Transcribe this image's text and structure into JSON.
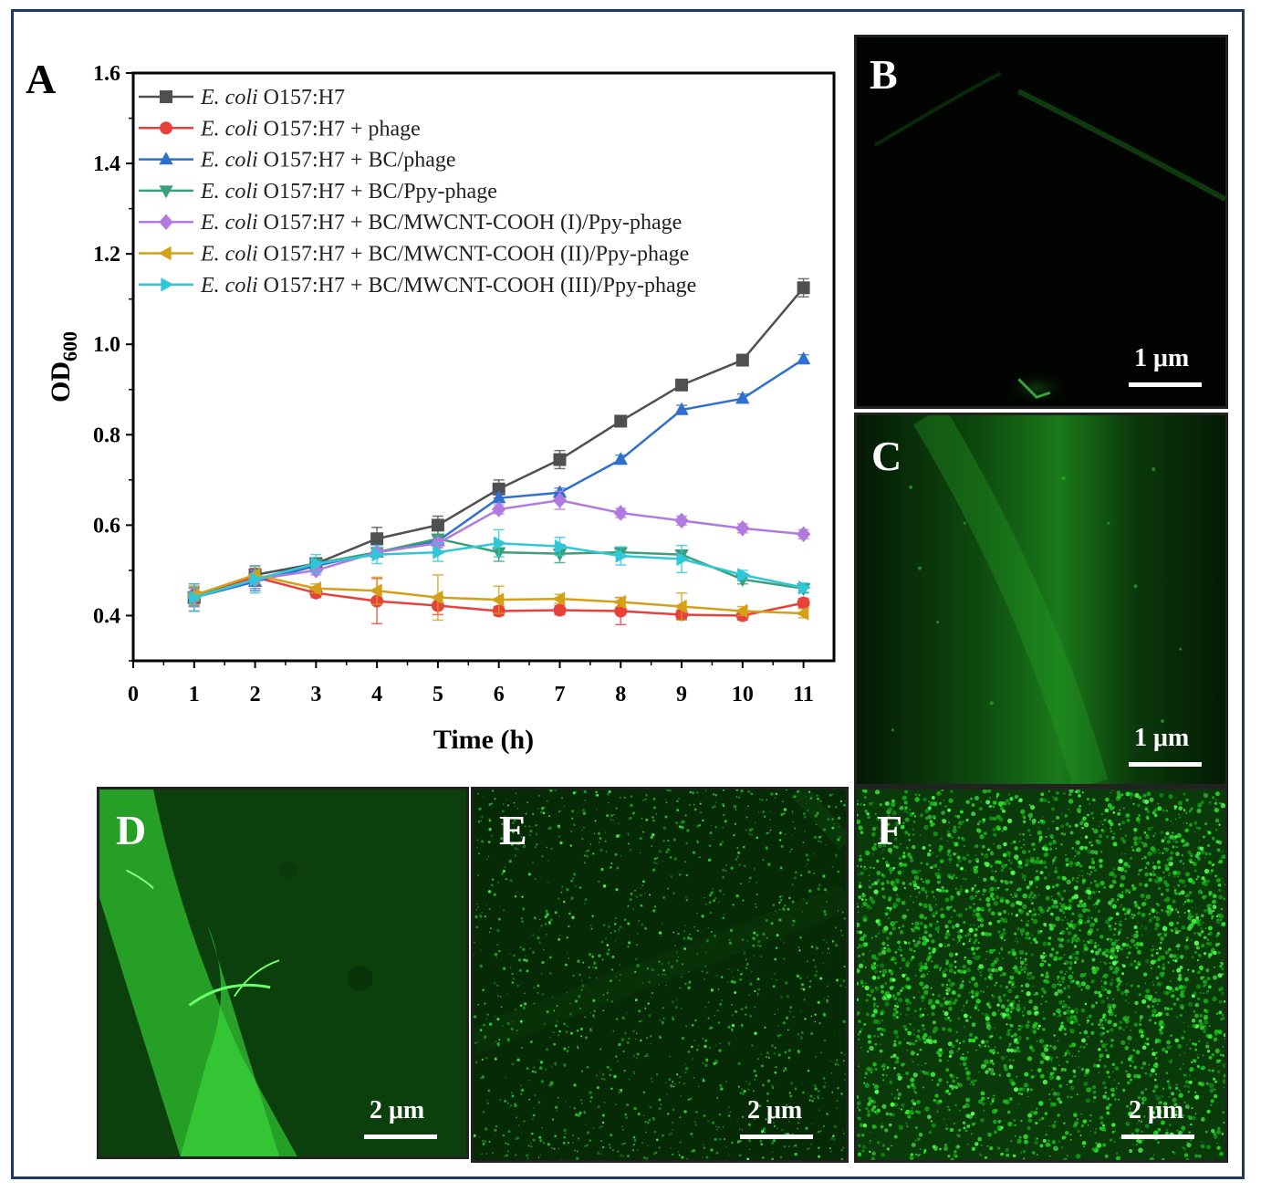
{
  "chart_data": {
    "type": "line",
    "panel_label": "A",
    "xlabel": "Time (h)",
    "ylabel_main": "OD",
    "ylabel_sub": "600",
    "xlim": [
      0,
      11.5
    ],
    "ylim": [
      0.3,
      1.6
    ],
    "xticks": [
      "0",
      "1",
      "2",
      "3",
      "4",
      "5",
      "6",
      "7",
      "8",
      "9",
      "10",
      "11"
    ],
    "yticks": [
      "0.4",
      "0.6",
      "0.8",
      "1.0",
      "1.2",
      "1.4",
      "1.6"
    ],
    "legend_position": "top-left",
    "x": [
      1,
      2,
      3,
      4,
      5,
      6,
      7,
      8,
      9,
      10,
      11
    ],
    "series": [
      {
        "name_italic": "E. coli",
        "name_rest": " O157:H7",
        "color": "#505050",
        "marker": "square",
        "values": [
          0.44,
          0.49,
          0.515,
          0.57,
          0.6,
          0.68,
          0.745,
          0.83,
          0.91,
          0.965,
          1.125
        ],
        "errors": [
          0.03,
          0.02,
          0.01,
          0.025,
          0.02,
          0.02,
          0.02,
          0.01,
          0.01,
          0.01,
          0.02
        ]
      },
      {
        "name_italic": "E. coli",
        "name_rest": " O157:H7 + phage",
        "color": "#e8403a",
        "marker": "circle",
        "values": [
          0.445,
          0.485,
          0.45,
          0.432,
          0.422,
          0.41,
          0.412,
          0.41,
          0.402,
          0.4,
          0.428
        ],
        "errors": [
          0.02,
          0.02,
          0.01,
          0.05,
          0.02,
          0.01,
          0.01,
          0.03,
          0.01,
          0.01,
          0.01
        ]
      },
      {
        "name_italic": "E. coli",
        "name_rest": " O157:H7 + BC/phage",
        "color": "#2f6fd0",
        "marker": "triangle-up",
        "values": [
          0.44,
          0.475,
          0.51,
          0.54,
          0.565,
          0.66,
          0.672,
          0.745,
          0.855,
          0.88,
          0.967
        ],
        "errors": [
          0.02,
          0.02,
          0.01,
          0.01,
          0.01,
          0.01,
          0.01,
          0.01,
          0.01,
          0.01,
          0.01
        ]
      },
      {
        "name_italic": "E. coli",
        "name_rest": " O157:H7 + BC/Ppy-phage",
        "color": "#3aa07a",
        "marker": "triangle-down",
        "values": [
          0.442,
          0.48,
          0.515,
          0.54,
          0.57,
          0.54,
          0.537,
          0.54,
          0.535,
          0.48,
          0.46
        ],
        "errors": [
          0.02,
          0.02,
          0.01,
          0.01,
          0.01,
          0.02,
          0.02,
          0.01,
          0.01,
          0.01,
          0.01
        ]
      },
      {
        "name_italic": "E. coli",
        "name_rest": " O157:H7 + BC/MWCNT-COOH (I)/Ppy-phage",
        "color": "#b07ae0",
        "marker": "diamond",
        "values": [
          0.44,
          0.48,
          0.5,
          0.54,
          0.56,
          0.635,
          0.655,
          0.627,
          0.61,
          0.593,
          0.58
        ],
        "errors": [
          0.02,
          0.02,
          0.01,
          0.01,
          0.01,
          0.01,
          0.02,
          0.01,
          0.01,
          0.01,
          0.01
        ]
      },
      {
        "name_italic": "E. coli",
        "name_rest": " O157:H7 + BC/MWCNT-COOH (II)/Ppy-phage",
        "color": "#d4a017",
        "marker": "triangle-left",
        "values": [
          0.445,
          0.49,
          0.46,
          0.455,
          0.44,
          0.435,
          0.437,
          0.43,
          0.42,
          0.41,
          0.405
        ],
        "errors": [
          0.02,
          0.02,
          0.01,
          0.03,
          0.05,
          0.03,
          0.01,
          0.01,
          0.03,
          0.01,
          0.01
        ]
      },
      {
        "name_italic": "E. coli",
        "name_rest": " O157:H7 + BC/MWCNT-COOH (III)/Ppy-phage",
        "color": "#30c8d8",
        "marker": "triangle-right",
        "values": [
          0.44,
          0.48,
          0.515,
          0.535,
          0.54,
          0.56,
          0.553,
          0.532,
          0.525,
          0.49,
          0.462
        ],
        "errors": [
          0.03,
          0.03,
          0.02,
          0.02,
          0.02,
          0.03,
          0.02,
          0.02,
          0.03,
          0.01,
          0.01
        ]
      }
    ]
  },
  "micrographs": [
    {
      "id": "B",
      "label": "B",
      "scale": "1 μm"
    },
    {
      "id": "C",
      "label": "C",
      "scale": "1 μm"
    },
    {
      "id": "D",
      "label": "D",
      "scale": "2 μm"
    },
    {
      "id": "E",
      "label": "E",
      "scale": "2 μm"
    },
    {
      "id": "F",
      "label": "F",
      "scale": "2 μm"
    }
  ]
}
